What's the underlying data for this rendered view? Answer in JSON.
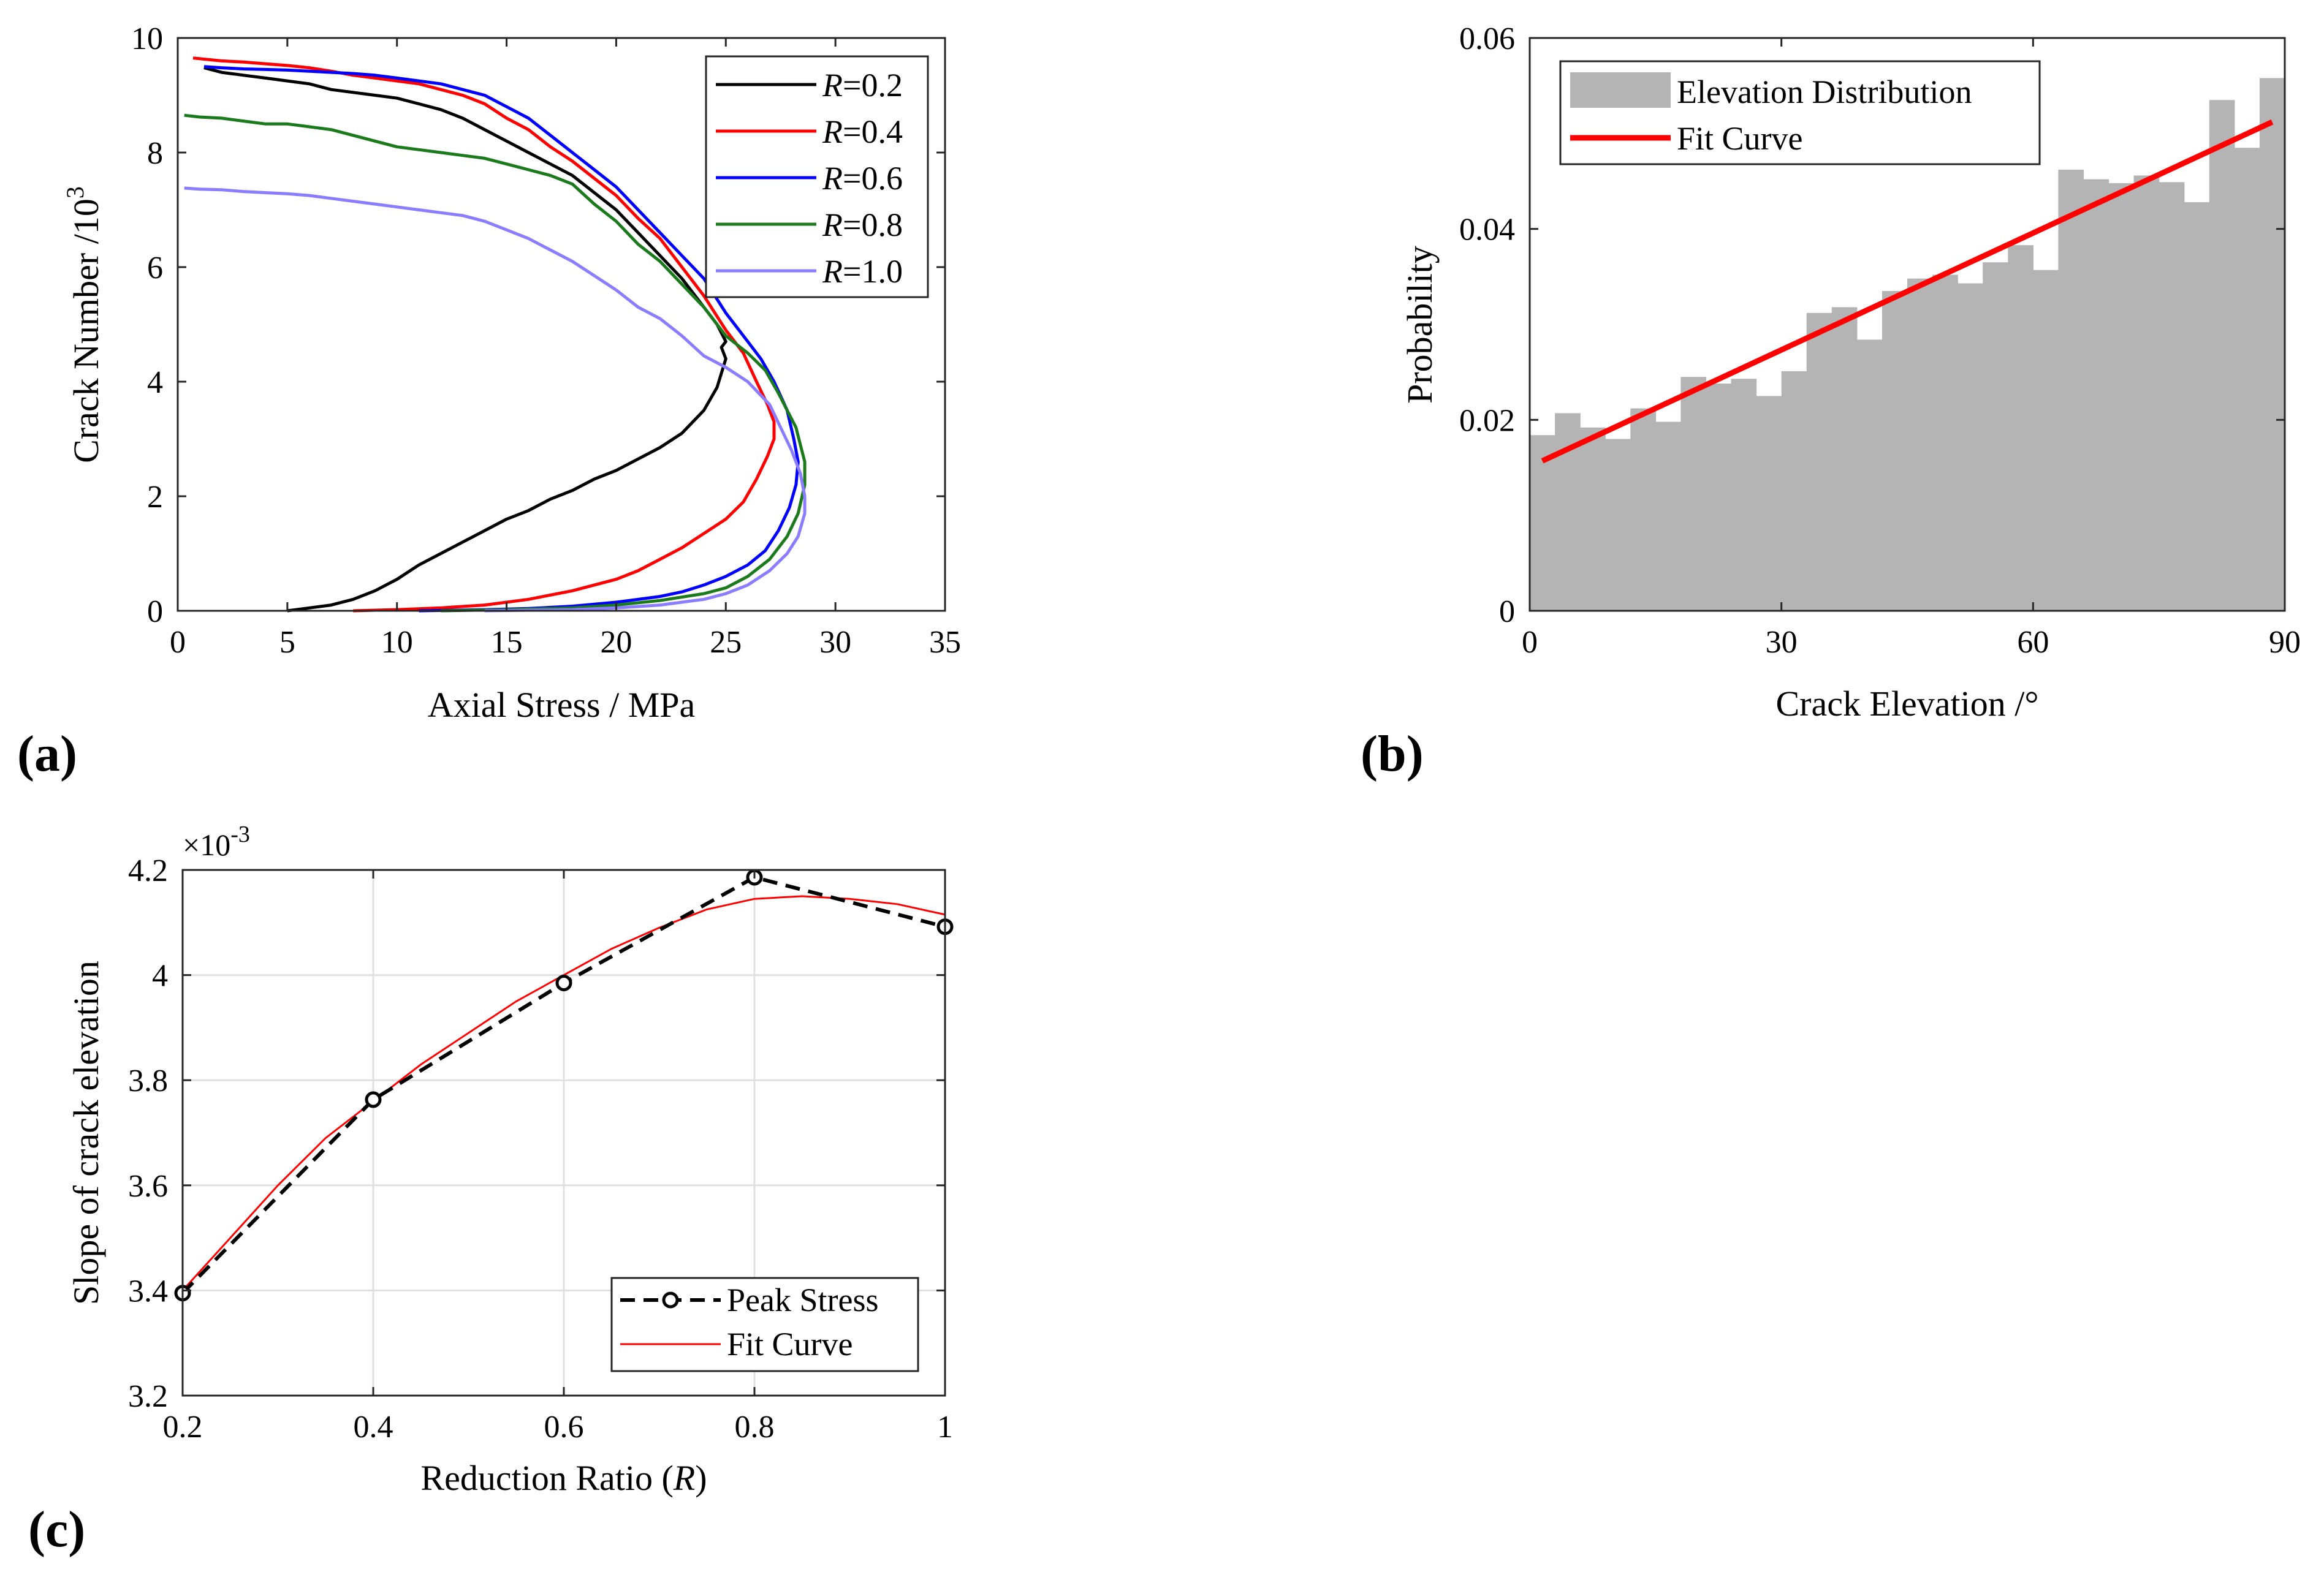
{
  "chart_data": [
    {
      "id": "a",
      "panel_label": "(a)",
      "type": "line",
      "xlabel": "Axial Stress / MPa",
      "ylabel": "Crack Number /10",
      "ylabel_exponent": "3",
      "xlim": [
        0,
        35
      ],
      "ylim": [
        0,
        10
      ],
      "xticks": [
        "0",
        "5",
        "10",
        "15",
        "20",
        "25",
        "30",
        "35"
      ],
      "yticks": [
        "0",
        "2",
        "4",
        "6",
        "8",
        "10"
      ],
      "grid": false,
      "legend_position": "top-right",
      "series": [
        {
          "name": "R=0.2",
          "legend_var": "R",
          "legend_val": "=0.2",
          "color": "#000000",
          "x": [
            5,
            6,
            7,
            8,
            9,
            10,
            11,
            12,
            13,
            14,
            15,
            16,
            17,
            18,
            19,
            20,
            21,
            22,
            23,
            24,
            24.6,
            25,
            24.8,
            25,
            24.6,
            24,
            23,
            22,
            21,
            20,
            19,
            18,
            17,
            16,
            15,
            14,
            13,
            12,
            11,
            10,
            9,
            8,
            7,
            6,
            5,
            4,
            3,
            2,
            1.2
          ],
          "y": [
            0,
            0.05,
            0.1,
            0.2,
            0.35,
            0.55,
            0.8,
            1.0,
            1.2,
            1.4,
            1.6,
            1.75,
            1.95,
            2.1,
            2.3,
            2.45,
            2.65,
            2.85,
            3.1,
            3.5,
            3.9,
            4.4,
            4.6,
            4.7,
            5.0,
            5.3,
            5.8,
            6.2,
            6.6,
            7.0,
            7.3,
            7.6,
            7.8,
            8.0,
            8.2,
            8.4,
            8.6,
            8.75,
            8.85,
            8.95,
            9.0,
            9.05,
            9.1,
            9.2,
            9.25,
            9.3,
            9.35,
            9.4,
            9.48
          ]
        },
        {
          "name": "R=0.4",
          "legend_var": "R",
          "legend_val": "=0.4",
          "color": "#ff0000",
          "x": [
            8,
            10,
            12,
            14,
            16,
            18,
            20,
            21,
            22,
            23,
            24,
            25,
            25.8,
            26.4,
            26.9,
            27.2,
            27.2,
            26.9,
            26.4,
            25.8,
            25,
            24,
            23,
            22,
            21,
            20,
            19,
            18,
            17,
            16,
            15,
            14,
            13,
            12,
            11,
            10,
            9,
            8,
            7,
            6,
            5,
            4,
            3,
            2,
            0.7
          ],
          "y": [
            0,
            0.02,
            0.05,
            0.1,
            0.2,
            0.35,
            0.55,
            0.7,
            0.9,
            1.1,
            1.35,
            1.6,
            1.9,
            2.3,
            2.7,
            3.0,
            3.3,
            3.6,
            4.0,
            4.5,
            4.9,
            5.5,
            6.0,
            6.5,
            6.85,
            7.25,
            7.55,
            7.85,
            8.1,
            8.4,
            8.6,
            8.85,
            9.0,
            9.1,
            9.2,
            9.25,
            9.3,
            9.35,
            9.42,
            9.48,
            9.52,
            9.55,
            9.58,
            9.6,
            9.65
          ]
        },
        {
          "name": "R=0.6",
          "legend_var": "R",
          "legend_val": "=0.6",
          "color": "#0000ff",
          "x": [
            11,
            14,
            16,
            18,
            20,
            22,
            23,
            24,
            25,
            26,
            26.8,
            27.4,
            27.9,
            28.2,
            28.3,
            28.1,
            27.8,
            27.2,
            26.6,
            26,
            25,
            24,
            23,
            22,
            21,
            20,
            19,
            18,
            17,
            16,
            15,
            14,
            13,
            12,
            11,
            10,
            9,
            8,
            7,
            6,
            5,
            4,
            3,
            2,
            1.2
          ],
          "y": [
            0,
            0.02,
            0.04,
            0.08,
            0.15,
            0.25,
            0.33,
            0.45,
            0.6,
            0.8,
            1.05,
            1.4,
            1.8,
            2.2,
            2.6,
            3.0,
            3.5,
            4.0,
            4.4,
            4.7,
            5.2,
            5.8,
            6.2,
            6.6,
            7.0,
            7.4,
            7.7,
            8.0,
            8.3,
            8.6,
            8.8,
            9.0,
            9.1,
            9.2,
            9.25,
            9.3,
            9.35,
            9.38,
            9.4,
            9.42,
            9.44,
            9.45,
            9.46,
            9.48,
            9.5
          ]
        },
        {
          "name": "R=0.8",
          "legend_var": "R",
          "legend_val": "=0.8",
          "color": "#1b7a1b",
          "x": [
            12,
            15,
            18,
            20,
            22,
            24,
            25,
            26,
            27,
            27.8,
            28.3,
            28.6,
            28.6,
            28.4,
            28.2,
            27.8,
            27.4,
            26.8,
            26,
            25,
            24,
            23,
            22,
            21,
            20,
            19,
            18,
            17,
            16,
            15,
            14,
            13,
            12,
            11,
            10,
            9,
            8,
            7,
            6,
            5,
            4,
            3,
            2,
            1,
            0.3
          ],
          "y": [
            0,
            0.02,
            0.05,
            0.1,
            0.18,
            0.3,
            0.4,
            0.6,
            0.9,
            1.3,
            1.7,
            2.2,
            2.6,
            2.9,
            3.2,
            3.5,
            3.8,
            4.2,
            4.5,
            4.8,
            5.3,
            5.7,
            6.1,
            6.4,
            6.8,
            7.1,
            7.45,
            7.6,
            7.7,
            7.8,
            7.9,
            7.95,
            8.0,
            8.05,
            8.1,
            8.2,
            8.3,
            8.4,
            8.45,
            8.5,
            8.5,
            8.55,
            8.6,
            8.62,
            8.65
          ]
        },
        {
          "name": "R=1.0",
          "legend_var": "R",
          "legend_val": "=1.0",
          "color": "#8a7dff",
          "x": [
            14,
            18,
            20,
            22,
            24,
            25,
            26,
            27,
            27.8,
            28.3,
            28.6,
            28.6,
            28.4,
            28.0,
            27.5,
            27.0,
            26,
            25,
            24,
            23,
            22,
            21,
            20,
            19,
            18,
            17,
            16,
            15,
            14,
            13,
            12,
            11,
            10,
            9,
            8,
            7,
            6,
            5,
            4,
            3,
            2,
            1,
            0.3
          ],
          "y": [
            0,
            0.02,
            0.05,
            0.1,
            0.2,
            0.3,
            0.45,
            0.7,
            1.0,
            1.3,
            1.7,
            2.0,
            2.4,
            2.8,
            3.2,
            3.6,
            4.0,
            4.25,
            4.45,
            4.8,
            5.1,
            5.3,
            5.6,
            5.85,
            6.1,
            6.3,
            6.5,
            6.65,
            6.8,
            6.9,
            6.95,
            7.0,
            7.05,
            7.1,
            7.15,
            7.2,
            7.25,
            7.28,
            7.3,
            7.32,
            7.35,
            7.36,
            7.38
          ]
        }
      ]
    },
    {
      "id": "b",
      "panel_label": "(b)",
      "type": "bar",
      "xlabel": "Crack Elevation /°",
      "ylabel": "Probability",
      "xlim": [
        0,
        90
      ],
      "ylim": [
        0,
        0.06
      ],
      "xticks": [
        "0",
        "30",
        "60",
        "90"
      ],
      "yticks": [
        "0",
        "0.02",
        "0.04",
        "0.06"
      ],
      "grid": false,
      "legend_position": "top-left",
      "bin_width": 3,
      "bin_starts": [
        0,
        3,
        6,
        9,
        12,
        15,
        18,
        21,
        24,
        27,
        30,
        33,
        36,
        39,
        42,
        45,
        48,
        51,
        54,
        57,
        60,
        63,
        66,
        69,
        72,
        75,
        78,
        81,
        84,
        87
      ],
      "series": [
        {
          "name": "Elevation Distribution",
          "color": "#b4b4b4",
          "values": [
            0.0184,
            0.0207,
            0.0192,
            0.018,
            0.0212,
            0.0198,
            0.0245,
            0.0238,
            0.0243,
            0.0225,
            0.0251,
            0.0312,
            0.0318,
            0.0284,
            0.0335,
            0.0348,
            0.0352,
            0.0343,
            0.0365,
            0.0383,
            0.0357,
            0.0462,
            0.0452,
            0.0448,
            0.0456,
            0.0449,
            0.0428,
            0.0535,
            0.0485,
            0.0558
          ]
        },
        {
          "name": "Fit Curve",
          "color": "#ff0000",
          "x": [
            1.5,
            88.5
          ],
          "y": [
            0.0157,
            0.0512
          ]
        }
      ]
    },
    {
      "id": "c",
      "panel_label": "(c)",
      "type": "line",
      "xlabel_prefix": "Reduction Ratio (",
      "xlabel_var": "R",
      "xlabel_suffix": ")",
      "ylabel": "Slope of crack elevation",
      "y_exponent_label": "×10",
      "y_exponent": "-3",
      "xlim": [
        0.2,
        1.0
      ],
      "ylim": [
        3.2,
        4.2
      ],
      "xticks": [
        "0.2",
        "0.4",
        "0.6",
        "0.8",
        "1"
      ],
      "yticks": [
        "3.2",
        "3.4",
        "3.6",
        "3.8",
        "4",
        "4.2"
      ],
      "grid": true,
      "legend_position": "bottom-right",
      "series": [
        {
          "name": "Peak Stress",
          "color": "#000000",
          "style": "dashed-circle",
          "x": [
            0.2,
            0.4,
            0.6,
            0.8,
            1.0
          ],
          "y": [
            3.395,
            3.763,
            3.985,
            4.186,
            4.092
          ]
        },
        {
          "name": "Fit Curve",
          "color": "#ff0000",
          "style": "solid",
          "x": [
            0.2,
            0.25,
            0.3,
            0.35,
            0.4,
            0.45,
            0.5,
            0.55,
            0.6,
            0.65,
            0.7,
            0.75,
            0.8,
            0.85,
            0.9,
            0.95,
            1.0
          ],
          "y": [
            3.4,
            3.5,
            3.6,
            3.69,
            3.76,
            3.83,
            3.89,
            3.95,
            4.0,
            4.05,
            4.09,
            4.125,
            4.145,
            4.15,
            4.145,
            4.135,
            4.115
          ]
        }
      ]
    }
  ]
}
